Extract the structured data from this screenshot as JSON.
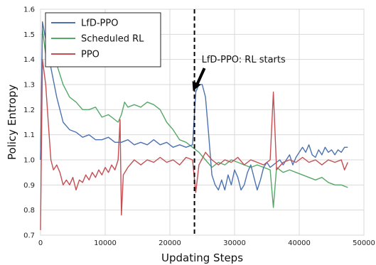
{
  "chart_data": {
    "type": "line",
    "xlabel": "Updating Steps",
    "ylabel": "Policy Entropy",
    "xlim": [
      0,
      50000
    ],
    "ylim": [
      0.7,
      1.6
    ],
    "xticks": [
      0,
      10000,
      20000,
      30000,
      40000,
      50000
    ],
    "yticks": [
      0.7,
      0.8,
      0.9,
      1.0,
      1.1,
      1.2,
      1.3,
      1.4,
      1.5,
      1.6
    ],
    "grid": true,
    "legend_position": "top-left",
    "annotation": {
      "text": "LfD-PPO: RL starts",
      "x": 23800,
      "y": 1.28
    },
    "vertical_line": {
      "x": 23800,
      "style": "dashed"
    },
    "series": [
      {
        "name": "LfD-PPO",
        "color": "#4c72b0",
        "points": [
          [
            0,
            1.0
          ],
          [
            300,
            1.55
          ],
          [
            800,
            1.48
          ],
          [
            1500,
            1.38
          ],
          [
            2500,
            1.25
          ],
          [
            3500,
            1.15
          ],
          [
            4500,
            1.12
          ],
          [
            5500,
            1.11
          ],
          [
            6500,
            1.09
          ],
          [
            7500,
            1.1
          ],
          [
            8500,
            1.08
          ],
          [
            9500,
            1.08
          ],
          [
            10500,
            1.09
          ],
          [
            11500,
            1.07
          ],
          [
            12500,
            1.07
          ],
          [
            13500,
            1.08
          ],
          [
            14500,
            1.06
          ],
          [
            15500,
            1.07
          ],
          [
            16500,
            1.06
          ],
          [
            17500,
            1.08
          ],
          [
            18500,
            1.06
          ],
          [
            19500,
            1.07
          ],
          [
            20500,
            1.05
          ],
          [
            21500,
            1.06
          ],
          [
            22500,
            1.05
          ],
          [
            23500,
            1.06
          ],
          [
            24000,
            1.27
          ],
          [
            24500,
            1.3
          ],
          [
            25000,
            1.3
          ],
          [
            25500,
            1.25
          ],
          [
            26000,
            1.1
          ],
          [
            26500,
            0.94
          ],
          [
            27000,
            0.9
          ],
          [
            27500,
            0.88
          ],
          [
            28000,
            0.92
          ],
          [
            28500,
            0.88
          ],
          [
            29000,
            0.94
          ],
          [
            29500,
            0.9
          ],
          [
            30000,
            0.96
          ],
          [
            30500,
            0.93
          ],
          [
            31000,
            0.88
          ],
          [
            31500,
            0.9
          ],
          [
            32000,
            0.95
          ],
          [
            32500,
            0.98
          ],
          [
            33000,
            0.93
          ],
          [
            33500,
            0.88
          ],
          [
            34000,
            0.92
          ],
          [
            34500,
            0.97
          ],
          [
            35000,
            0.99
          ],
          [
            35500,
            0.97
          ],
          [
            36000,
            0.98
          ],
          [
            36500,
            0.99
          ],
          [
            37000,
            1.0
          ],
          [
            37500,
            0.98
          ],
          [
            38000,
            1.0
          ],
          [
            38500,
            1.02
          ],
          [
            39000,
            0.98
          ],
          [
            39500,
            1.01
          ],
          [
            40000,
            1.03
          ],
          [
            40500,
            1.05
          ],
          [
            41000,
            1.03
          ],
          [
            41500,
            1.06
          ],
          [
            42000,
            1.02
          ],
          [
            42500,
            1.01
          ],
          [
            43000,
            1.04
          ],
          [
            43500,
            1.02
          ],
          [
            44000,
            1.05
          ],
          [
            44500,
            1.03
          ],
          [
            45000,
            1.04
          ],
          [
            45500,
            1.02
          ],
          [
            46000,
            1.04
          ],
          [
            46500,
            1.03
          ],
          [
            47000,
            1.05
          ],
          [
            47500,
            1.05
          ]
        ]
      },
      {
        "name": "Scheduled RL",
        "color": "#55a868",
        "points": [
          [
            0,
            1.0
          ],
          [
            300,
            1.52
          ],
          [
            800,
            1.42
          ],
          [
            1500,
            1.4
          ],
          [
            2500,
            1.38
          ],
          [
            3500,
            1.3
          ],
          [
            4500,
            1.25
          ],
          [
            5500,
            1.23
          ],
          [
            6500,
            1.2
          ],
          [
            7500,
            1.2
          ],
          [
            8500,
            1.21
          ],
          [
            9500,
            1.17
          ],
          [
            10500,
            1.18
          ],
          [
            11500,
            1.16
          ],
          [
            12000,
            1.15
          ],
          [
            12500,
            1.18
          ],
          [
            13000,
            1.23
          ],
          [
            13500,
            1.21
          ],
          [
            14500,
            1.22
          ],
          [
            15500,
            1.21
          ],
          [
            16500,
            1.23
          ],
          [
            17500,
            1.22
          ],
          [
            18500,
            1.2
          ],
          [
            19500,
            1.15
          ],
          [
            20500,
            1.12
          ],
          [
            21500,
            1.08
          ],
          [
            22500,
            1.07
          ],
          [
            23500,
            1.05
          ],
          [
            24500,
            1.03
          ],
          [
            25500,
            1.0
          ],
          [
            26500,
            0.97
          ],
          [
            27500,
            0.99
          ],
          [
            28500,
            0.98
          ],
          [
            29500,
            1.0
          ],
          [
            30500,
            0.99
          ],
          [
            31500,
            0.98
          ],
          [
            32500,
            0.97
          ],
          [
            33500,
            0.98
          ],
          [
            34500,
            0.97
          ],
          [
            35500,
            0.96
          ],
          [
            36000,
            0.81
          ],
          [
            36500,
            0.97
          ],
          [
            37500,
            0.95
          ],
          [
            38500,
            0.96
          ],
          [
            39500,
            0.95
          ],
          [
            40500,
            0.94
          ],
          [
            41500,
            0.93
          ],
          [
            42500,
            0.92
          ],
          [
            43500,
            0.93
          ],
          [
            44500,
            0.91
          ],
          [
            45500,
            0.9
          ],
          [
            46500,
            0.9
          ],
          [
            47500,
            0.89
          ]
        ]
      },
      {
        "name": "PPO",
        "color": "#c44e52",
        "points": [
          [
            0,
            0.72
          ],
          [
            300,
            1.4
          ],
          [
            800,
            1.3
          ],
          [
            1200,
            1.15
          ],
          [
            1600,
            1.0
          ],
          [
            2000,
            0.96
          ],
          [
            2500,
            0.98
          ],
          [
            3000,
            0.95
          ],
          [
            3500,
            0.9
          ],
          [
            4000,
            0.92
          ],
          [
            4500,
            0.9
          ],
          [
            5000,
            0.93
          ],
          [
            5500,
            0.88
          ],
          [
            6000,
            0.92
          ],
          [
            6500,
            0.91
          ],
          [
            7000,
            0.94
          ],
          [
            7500,
            0.92
          ],
          [
            8000,
            0.95
          ],
          [
            8500,
            0.93
          ],
          [
            9000,
            0.96
          ],
          [
            9500,
            0.94
          ],
          [
            10000,
            0.97
          ],
          [
            10500,
            0.95
          ],
          [
            11000,
            0.98
          ],
          [
            11500,
            0.96
          ],
          [
            12000,
            1.0
          ],
          [
            12300,
            1.16
          ],
          [
            12500,
            0.78
          ],
          [
            12800,
            0.94
          ],
          [
            13500,
            0.97
          ],
          [
            14500,
            1.0
          ],
          [
            15500,
            0.98
          ],
          [
            16500,
            1.0
          ],
          [
            17500,
            0.99
          ],
          [
            18500,
            1.01
          ],
          [
            19500,
            0.99
          ],
          [
            20500,
            1.0
          ],
          [
            21500,
            0.98
          ],
          [
            22500,
            1.01
          ],
          [
            23500,
            1.0
          ],
          [
            24000,
            0.87
          ],
          [
            24500,
            0.98
          ],
          [
            25500,
            1.03
          ],
          [
            26500,
            1.0
          ],
          [
            27500,
            0.98
          ],
          [
            28500,
            1.0
          ],
          [
            29500,
            0.99
          ],
          [
            30500,
            1.01
          ],
          [
            31500,
            0.98
          ],
          [
            32500,
            1.0
          ],
          [
            33500,
            0.99
          ],
          [
            34500,
            0.98
          ],
          [
            35500,
            1.0
          ],
          [
            36000,
            1.27
          ],
          [
            36500,
            0.96
          ],
          [
            37500,
            0.99
          ],
          [
            38500,
            1.0
          ],
          [
            39500,
            0.99
          ],
          [
            40500,
            1.01
          ],
          [
            41500,
            0.99
          ],
          [
            42500,
            1.0
          ],
          [
            43500,
            0.98
          ],
          [
            44500,
            1.0
          ],
          [
            45500,
            0.99
          ],
          [
            46500,
            1.0
          ],
          [
            47000,
            0.96
          ],
          [
            47500,
            0.99
          ]
        ]
      }
    ]
  }
}
